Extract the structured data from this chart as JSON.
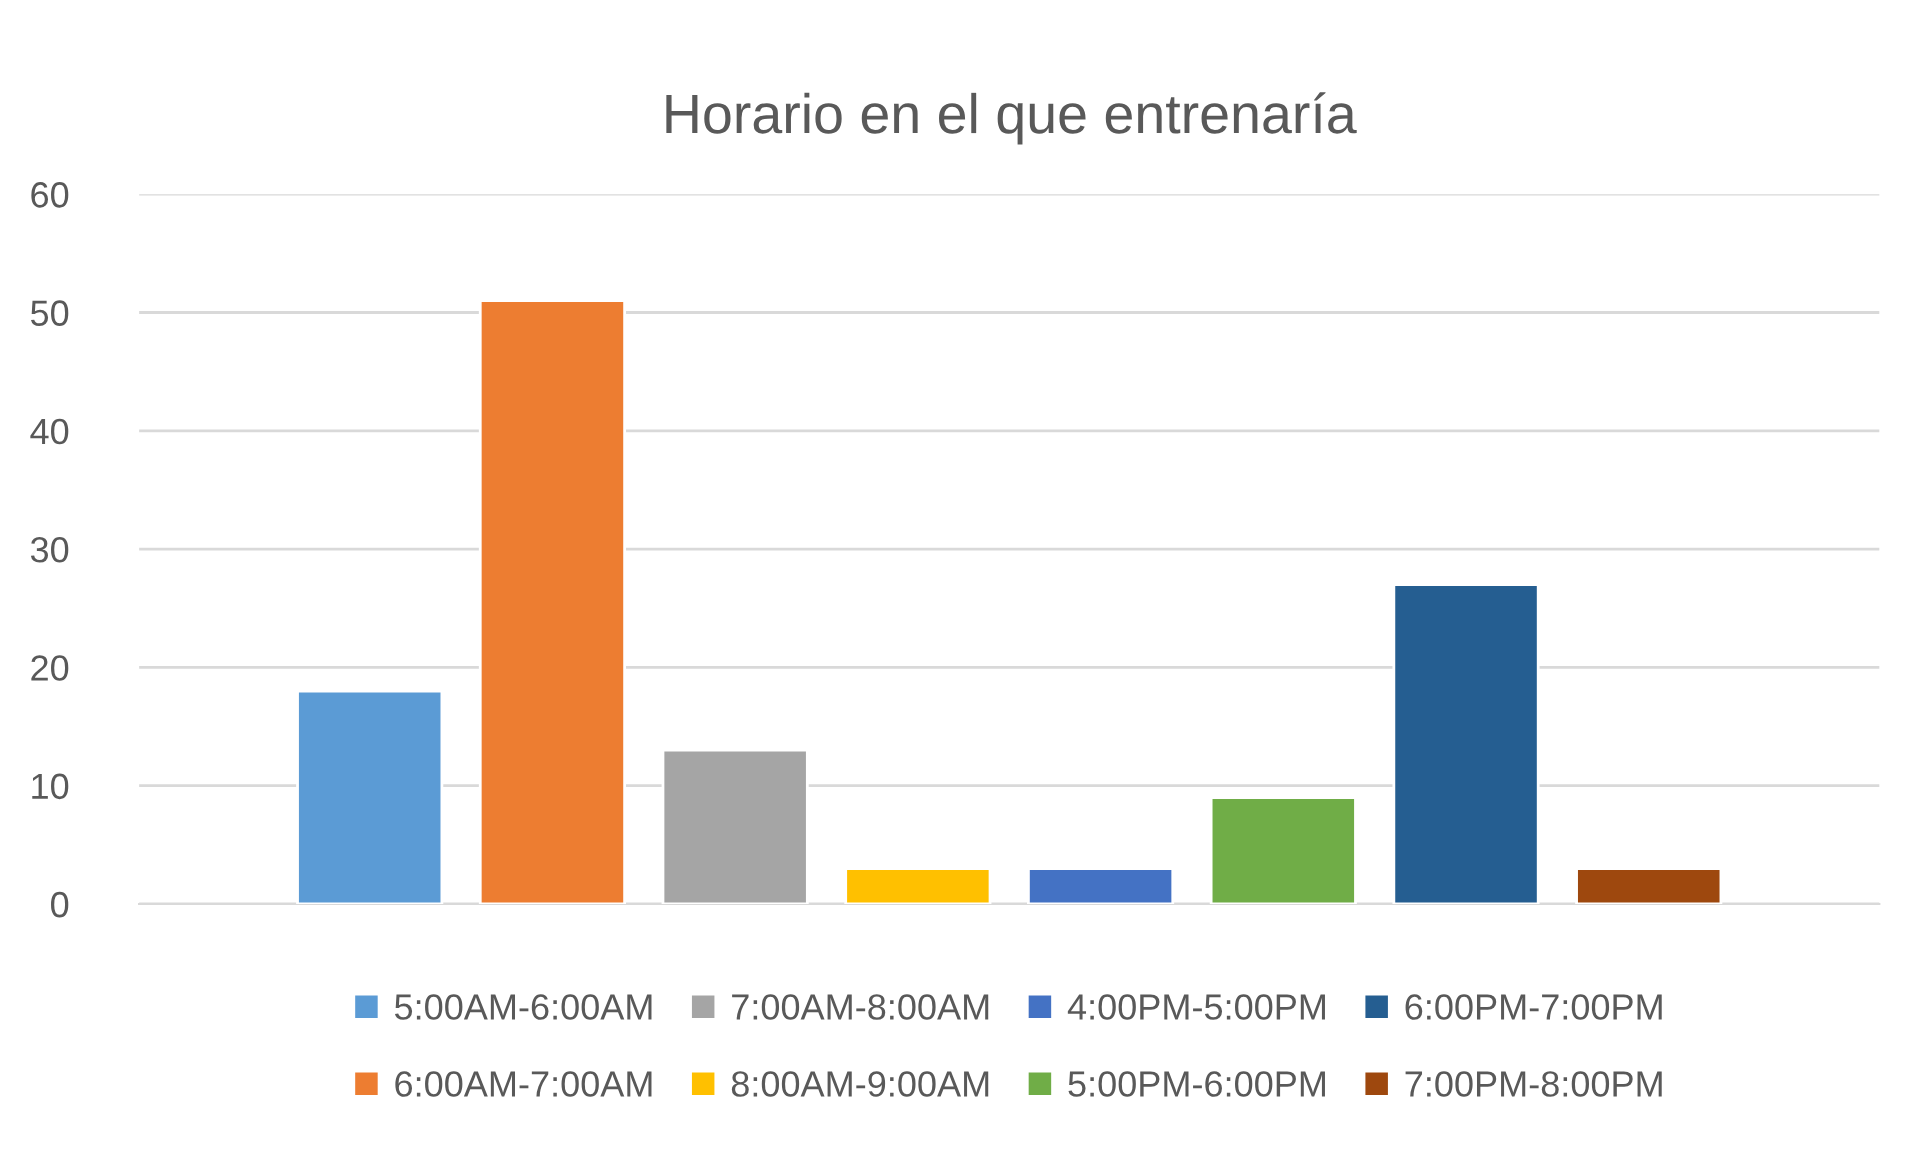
{
  "chart_data": {
    "type": "bar",
    "title": "Horario en el que entrenaría",
    "categories": [
      null
    ],
    "series": [
      {
        "name": "5:00AM-6:00AM",
        "color": "#5b9bd5",
        "values": [
          18
        ]
      },
      {
        "name": "6:00AM-7:00AM",
        "color": "#ed7d31",
        "values": [
          51
        ]
      },
      {
        "name": "7:00AM-8:00AM",
        "color": "#a5a5a5",
        "values": [
          13
        ]
      },
      {
        "name": "8:00AM-9:00AM",
        "color": "#ffc000",
        "values": [
          3
        ]
      },
      {
        "name": "4:00PM-5:00PM",
        "color": "#4472c4",
        "values": [
          3
        ]
      },
      {
        "name": "5:00PM-6:00PM",
        "color": "#70ad47",
        "values": [
          9
        ]
      },
      {
        "name": "6:00PM-7:00PM",
        "color": "#255e91",
        "values": [
          27
        ]
      },
      {
        "name": "7:00PM-8:00PM",
        "color": "#9e480e",
        "values": [
          3
        ]
      }
    ],
    "ylim": [
      0,
      60
    ],
    "yticks": [
      0,
      10,
      20,
      30,
      40,
      50,
      60
    ],
    "grid": "y",
    "legend": "bottom"
  }
}
